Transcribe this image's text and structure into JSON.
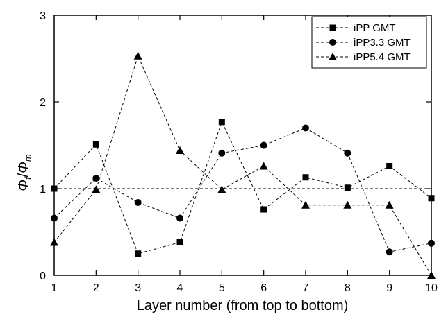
{
  "chart_data": {
    "type": "line",
    "xlabel": "Layer number (from top to bottom)",
    "ylabel": {
      "phi": "Φ",
      "f": "f",
      "slash": "/",
      "m": "m"
    },
    "xlim": [
      1,
      10
    ],
    "ylim": [
      0,
      3
    ],
    "x_ticks": [
      "1",
      "2",
      "3",
      "4",
      "5",
      "6",
      "7",
      "8",
      "9",
      "10"
    ],
    "y_ticks": [
      "0",
      "1",
      "2",
      "3"
    ],
    "grid": false,
    "legend_placement": "top-right",
    "reference_line": {
      "y": 1,
      "style": "dashed"
    },
    "x": [
      1,
      2,
      3,
      4,
      5,
      6,
      7,
      8,
      9,
      10
    ],
    "series": [
      {
        "name": "iPP GMT",
        "marker": "square",
        "values": [
          1.0,
          1.51,
          0.25,
          0.38,
          1.77,
          0.76,
          1.13,
          1.01,
          1.26,
          0.89
        ]
      },
      {
        "name": "iPP3.3 GMT",
        "marker": "circle",
        "values": [
          0.66,
          1.12,
          0.84,
          0.66,
          1.41,
          1.5,
          1.7,
          1.41,
          0.27,
          0.37
        ]
      },
      {
        "name": "iPP5.4 GMT",
        "marker": "triangle",
        "values": [
          0.38,
          0.99,
          2.53,
          1.44,
          0.99,
          1.26,
          0.81,
          0.81,
          0.81,
          0.0
        ]
      }
    ]
  }
}
